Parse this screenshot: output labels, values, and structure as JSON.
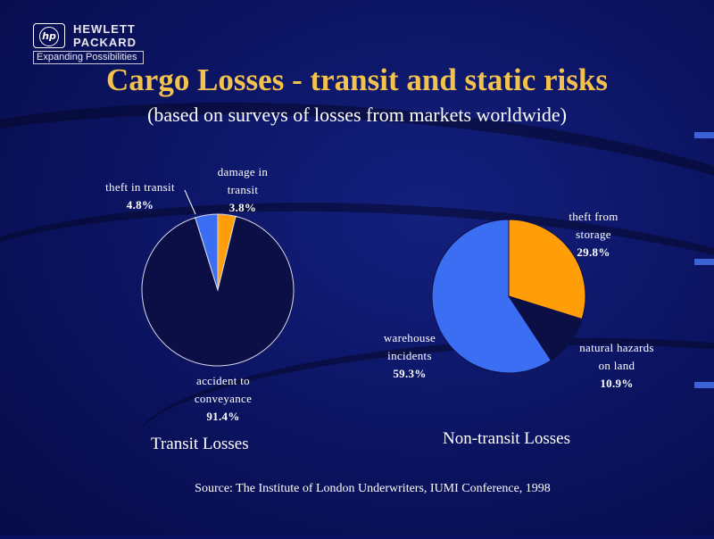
{
  "logo": {
    "line1": "HEWLETT",
    "line2": "PACKARD",
    "tagline": "Expanding Possibilities",
    "mark": "hp"
  },
  "title": "Cargo Losses - transit and static risks",
  "subtitle": "(based on surveys of losses from markets worldwide)",
  "source": "Source: The Institute of London Underwriters, IUMI Conference, 1998",
  "colors": {
    "background": "#0a1060",
    "title": "#f2c14e",
    "slice_dark": "#0b0f45",
    "slice_blue": "#3b6ef2",
    "slice_orange": "#ff9e08"
  },
  "chart_data": [
    {
      "type": "pie",
      "title": "Transit Losses",
      "slices": [
        {
          "label": [
            "damage in",
            "transit",
            "3.8%"
          ],
          "value": 3.8,
          "color": "#ff9e08"
        },
        {
          "label": [
            "accident to",
            "conveyance",
            "91.4%"
          ],
          "value": 91.4,
          "color": "#0b0f45"
        },
        {
          "label": [
            "theft in transit",
            "4.8%"
          ],
          "value": 4.8,
          "color": "#3b6ef2"
        }
      ]
    },
    {
      "type": "pie",
      "title": "Non-transit Losses",
      "slices": [
        {
          "label": [
            "theft from",
            "storage",
            "29.8%"
          ],
          "value": 29.8,
          "color": "#ff9e08"
        },
        {
          "label": [
            "natural hazards",
            "on land",
            "10.9%"
          ],
          "value": 10.9,
          "color": "#0b0f45"
        },
        {
          "label": [
            "warehouse",
            "incidents",
            "59.3%"
          ],
          "value": 59.3,
          "color": "#3b6ef2"
        }
      ]
    }
  ]
}
